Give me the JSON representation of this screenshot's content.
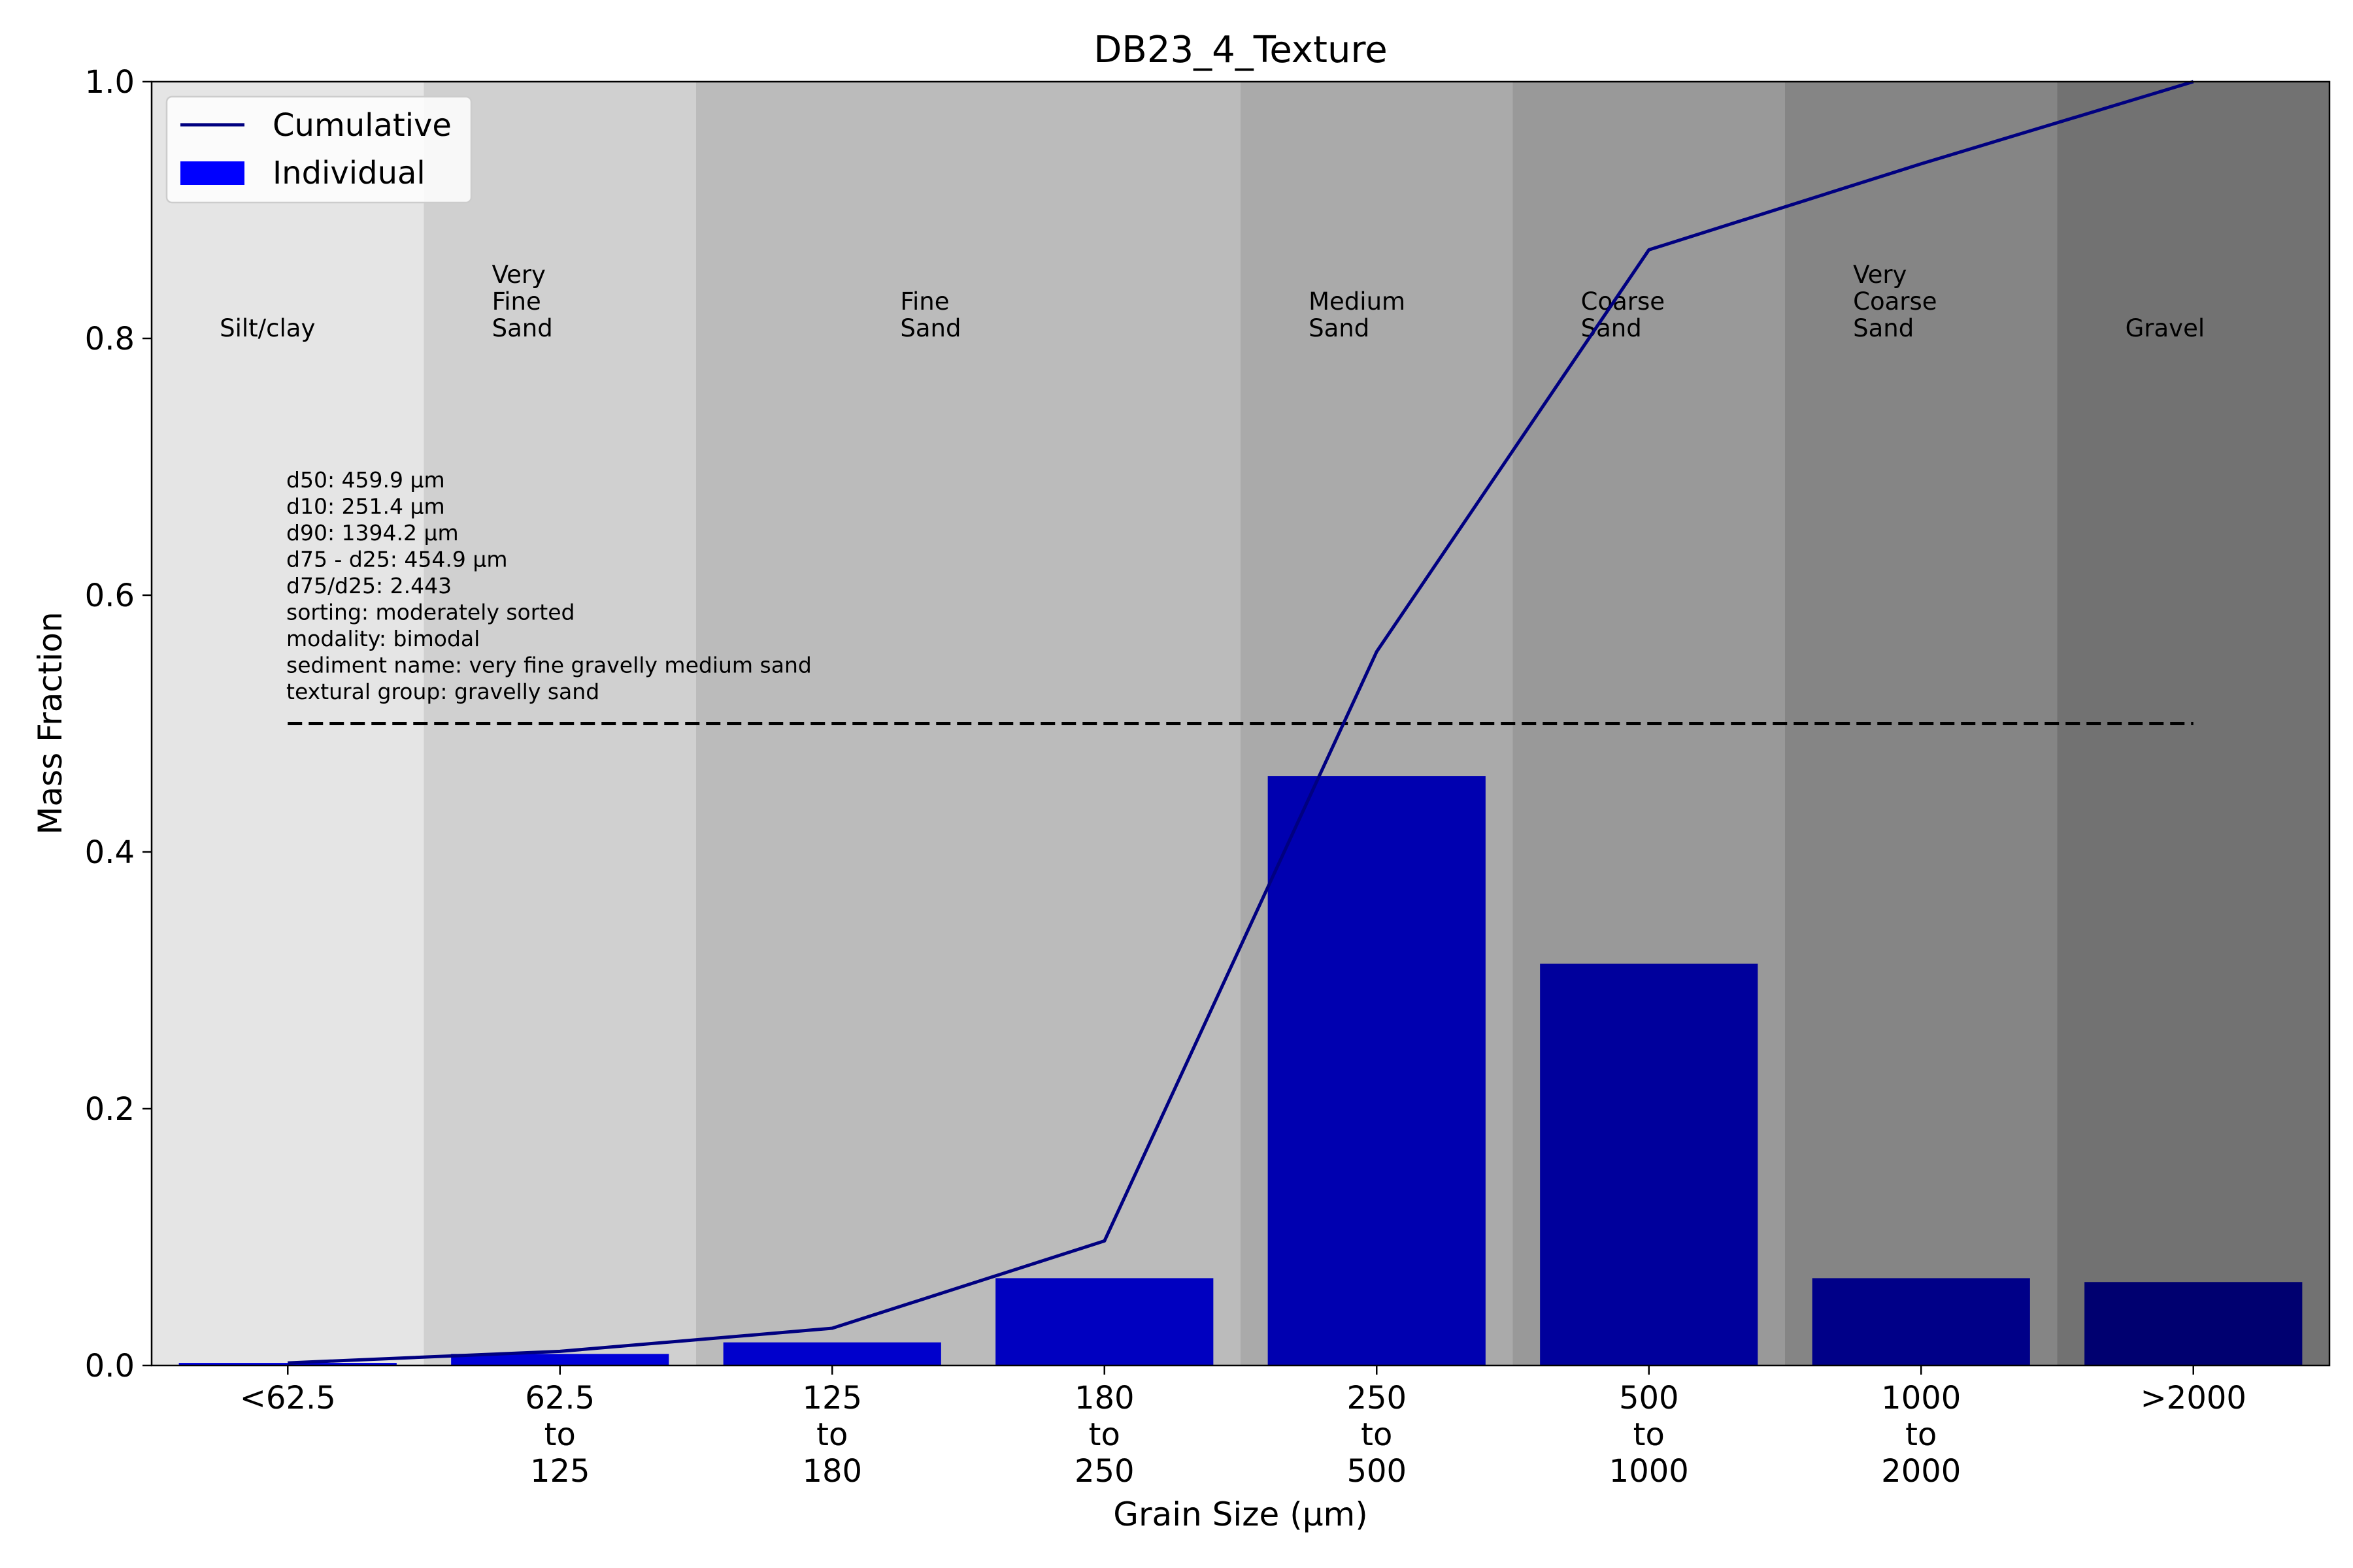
{
  "chart_data": {
    "type": "bar",
    "title": "DB23_4_Texture",
    "xlabel": "Grain Size (μm)",
    "ylabel": "Mass Fraction",
    "ylim": [
      0,
      1.0
    ],
    "yticks": [
      "0.0",
      "0.2",
      "0.4",
      "0.6",
      "0.8",
      "1.0"
    ],
    "categories": [
      [
        "<62.5"
      ],
      [
        "62.5",
        "to",
        "125"
      ],
      [
        "125",
        "to",
        "180"
      ],
      [
        "180",
        "to",
        "250"
      ],
      [
        "250",
        "to",
        "500"
      ],
      [
        "500",
        "to",
        "1000"
      ],
      [
        "1000",
        "to",
        "2000"
      ],
      [
        ">2000"
      ]
    ],
    "series": [
      {
        "name": "Individual",
        "type": "bar",
        "values": [
          0.002,
          0.009,
          0.018,
          0.068,
          0.459,
          0.313,
          0.068,
          0.065
        ],
        "colors": [
          "#0000e0",
          "#0000d8",
          "#0000cc",
          "#0000c0",
          "#0000b0",
          "#00009c",
          "#000088",
          "#000070"
        ]
      },
      {
        "name": "Cumulative",
        "type": "line",
        "values": [
          0.002,
          0.011,
          0.029,
          0.097,
          0.556,
          0.869,
          0.936,
          1.0
        ],
        "color": "#000080"
      }
    ],
    "median_line": {
      "y": 0.5,
      "style": "dashed"
    },
    "legend": {
      "position": "top-left",
      "entries": [
        "Cumulative",
        "Individual"
      ]
    },
    "zones": [
      {
        "label": [
          "Silt/clay"
        ],
        "color": "#e5e5e5"
      },
      {
        "label": [
          "Very",
          "Fine",
          "Sand"
        ],
        "color": "#d0d0d0"
      },
      {
        "label": [
          "Fine",
          "Sand"
        ],
        "color": "#bbbbbb"
      },
      {
        "label": [
          "Medium",
          "Sand"
        ],
        "color": "#aaaaaa"
      },
      {
        "label": [
          "Coarse",
          "Sand"
        ],
        "color": "#999999"
      },
      {
        "label": [
          "Very",
          "Coarse",
          "Sand"
        ],
        "color": "#858585"
      },
      {
        "label": [
          "Gravel"
        ],
        "color": "#727272"
      }
    ],
    "annotations": [
      "d50: 459.9 μm",
      "d10: 251.4 μm",
      "d90: 1394.2 μm",
      "d75 - d25: 454.9 μm",
      "d75/d25: 2.443",
      "sorting: moderately sorted",
      "modality: bimodal",
      "sediment name: very fine gravelly medium sand",
      "textural group: gravelly sand"
    ]
  }
}
